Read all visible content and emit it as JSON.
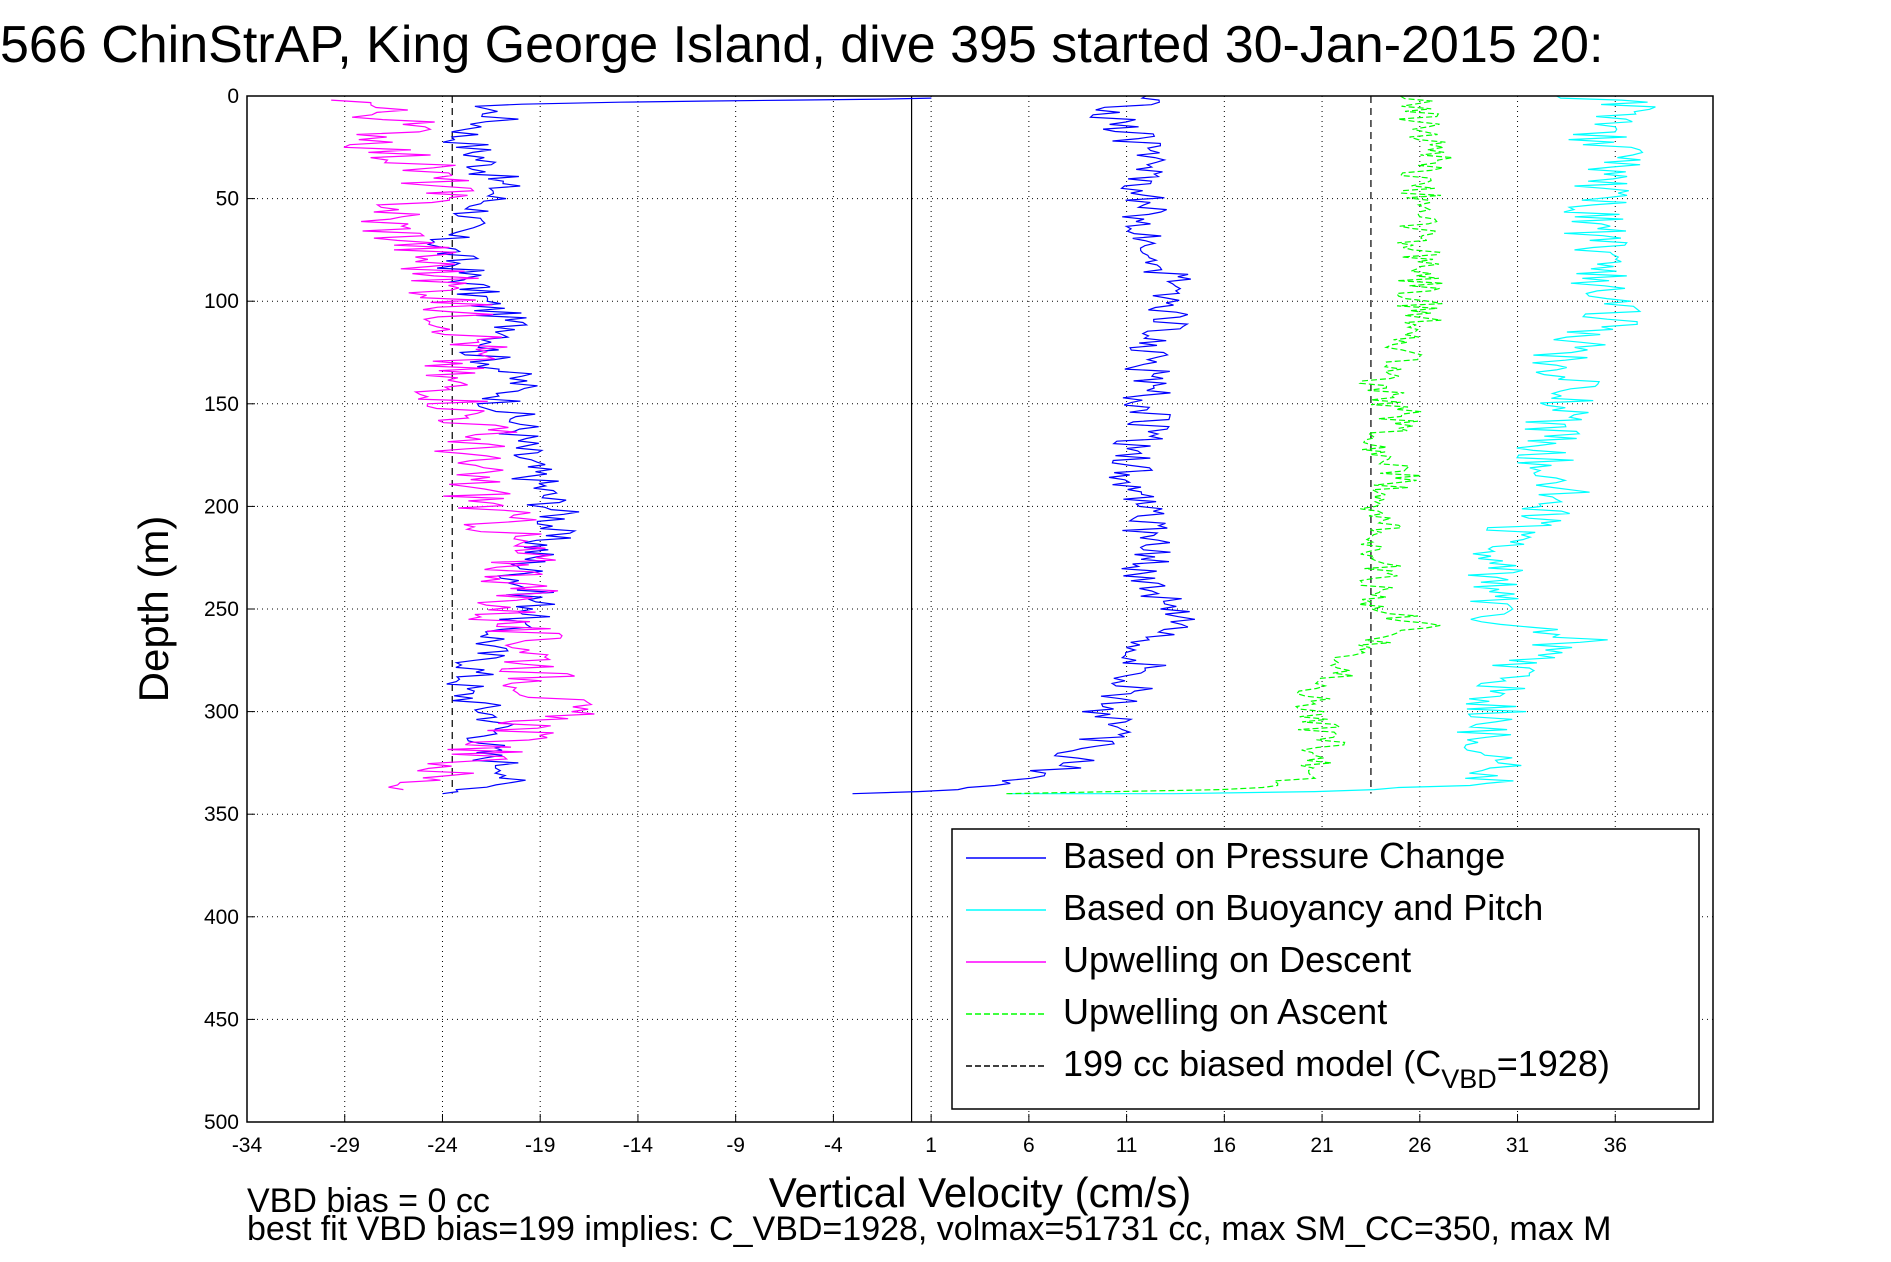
{
  "chart_data": {
    "type": "line",
    "title": "566 ChinStrAP, King George Island, dive 395 started 30-Jan-2015 20:",
    "xlabel": "Vertical Velocity (cm/s)",
    "ylabel": "Depth (m)",
    "xlim": [
      -34,
      41
    ],
    "ylim": [
      0,
      500
    ],
    "y_reversed": true,
    "xticks": [
      "-34",
      "-29",
      "-24",
      "-19",
      "-14",
      "-9",
      "-4",
      "1",
      "6",
      "11",
      "16",
      "21",
      "26",
      "31",
      "36"
    ],
    "yticks": [
      "0",
      "50",
      "100",
      "150",
      "200",
      "250",
      "300",
      "350",
      "400",
      "450",
      "500"
    ],
    "grid": true,
    "legend_position": "bottom-right",
    "zero_line_x": 0,
    "max_depth": 340,
    "series": [
      {
        "name": "Based on Pressure Change",
        "color": "#0000ff",
        "dash": "solid",
        "descent": [
          [
            0,
            1
          ],
          [
            -5,
            2
          ],
          [
            -16,
            3
          ],
          [
            -22,
            5
          ],
          [
            -21,
            10
          ],
          [
            -23,
            20
          ],
          [
            -22,
            30
          ],
          [
            -21,
            45
          ],
          [
            -22,
            55
          ],
          [
            -24,
            70
          ],
          [
            -23,
            85
          ],
          [
            -22,
            100
          ],
          [
            -20,
            115
          ],
          [
            -22,
            125
          ],
          [
            -20,
            140
          ],
          [
            -21,
            150
          ],
          [
            -20,
            160
          ],
          [
            -20,
            175
          ],
          [
            -19,
            190
          ],
          [
            -18,
            205
          ],
          [
            -19,
            220
          ],
          [
            -20,
            235
          ],
          [
            -19,
            250
          ],
          [
            -21,
            260
          ],
          [
            -22,
            275
          ],
          [
            -23,
            290
          ],
          [
            -21,
            305
          ],
          [
            -22,
            320
          ],
          [
            -20,
            330
          ],
          [
            -22,
            338
          ],
          [
            -24,
            340
          ]
        ],
        "ascent": [
          [
            -2,
            340
          ],
          [
            3,
            338
          ],
          [
            5,
            335
          ],
          [
            7,
            330
          ],
          [
            8,
            325
          ],
          [
            9,
            318
          ],
          [
            10,
            310
          ],
          [
            10,
            300
          ],
          [
            11,
            290
          ],
          [
            12,
            280
          ],
          [
            12,
            270
          ],
          [
            13,
            260
          ],
          [
            14,
            255
          ],
          [
            13,
            245
          ],
          [
            12,
            235
          ],
          [
            12,
            220
          ],
          [
            12,
            200
          ],
          [
            11,
            180
          ],
          [
            12,
            160
          ],
          [
            12,
            140
          ],
          [
            12,
            125
          ],
          [
            13,
            110
          ],
          [
            13,
            95
          ],
          [
            13,
            80
          ],
          [
            12,
            60
          ],
          [
            12,
            45
          ],
          [
            12,
            30
          ],
          [
            11,
            15
          ],
          [
            10,
            8
          ],
          [
            12,
            3
          ],
          [
            12,
            0
          ]
        ]
      },
      {
        "name": "Based on Buoyancy and Pitch",
        "color": "#00ffff",
        "dash": "solid",
        "descent": [],
        "ascent": [
          [
            5,
            340
          ],
          [
            15,
            340
          ],
          [
            25,
            338
          ],
          [
            29,
            335
          ],
          [
            30,
            330
          ],
          [
            30,
            320
          ],
          [
            29,
            310
          ],
          [
            30,
            300
          ],
          [
            30,
            290
          ],
          [
            31,
            280
          ],
          [
            32,
            270
          ],
          [
            34,
            265
          ],
          [
            30,
            255
          ],
          [
            30,
            245
          ],
          [
            30,
            230
          ],
          [
            30,
            215
          ],
          [
            33,
            200
          ],
          [
            33,
            185
          ],
          [
            32,
            175
          ],
          [
            33,
            160
          ],
          [
            34,
            145
          ],
          [
            33,
            130
          ],
          [
            34,
            120
          ],
          [
            36,
            110
          ],
          [
            36,
            100
          ],
          [
            35,
            90
          ],
          [
            35,
            75
          ],
          [
            35,
            60
          ],
          [
            35,
            45
          ],
          [
            36,
            30
          ],
          [
            35,
            20
          ],
          [
            36,
            10
          ],
          [
            37,
            3
          ],
          [
            33,
            0
          ]
        ]
      },
      {
        "name": "Upwelling on Descent",
        "color": "#ff00ff",
        "dash": "solid",
        "descent": [
          [
            -28,
            2
          ],
          [
            -27,
            8
          ],
          [
            -26,
            15
          ],
          [
            -27,
            25
          ],
          [
            -25,
            35
          ],
          [
            -24,
            45
          ],
          [
            -27,
            60
          ],
          [
            -25,
            75
          ],
          [
            -24,
            90
          ],
          [
            -23,
            110
          ],
          [
            -22,
            120
          ],
          [
            -24,
            135
          ],
          [
            -23,
            150
          ],
          [
            -22,
            165
          ],
          [
            -23,
            180
          ],
          [
            -22,
            195
          ],
          [
            -21,
            210
          ],
          [
            -20,
            225
          ],
          [
            -20,
            240
          ],
          [
            -21,
            255
          ],
          [
            -19,
            270
          ],
          [
            -19,
            285
          ],
          [
            -18,
            300
          ],
          [
            -21,
            315
          ],
          [
            -24,
            330
          ],
          [
            -26,
            338
          ]
        ],
        "ascent": []
      },
      {
        "name": "Upwelling on Ascent",
        "color": "#00ff00",
        "dash": "dashed",
        "descent": [],
        "ascent": [
          [
            5,
            340
          ],
          [
            17,
            338
          ],
          [
            19,
            335
          ],
          [
            20,
            330
          ],
          [
            21,
            320
          ],
          [
            21,
            310
          ],
          [
            20,
            300
          ],
          [
            21,
            290
          ],
          [
            22,
            280
          ],
          [
            23,
            270
          ],
          [
            26,
            258
          ],
          [
            24,
            250
          ],
          [
            24,
            235
          ],
          [
            24,
            215
          ],
          [
            24,
            200
          ],
          [
            25,
            185
          ],
          [
            24,
            170
          ],
          [
            25,
            155
          ],
          [
            24,
            140
          ],
          [
            25,
            125
          ],
          [
            26,
            115
          ],
          [
            26,
            100
          ],
          [
            26,
            90
          ],
          [
            26,
            75
          ],
          [
            26,
            60
          ],
          [
            26,
            45
          ],
          [
            26,
            35
          ],
          [
            27,
            25
          ],
          [
            26,
            15
          ],
          [
            26,
            5
          ],
          [
            25,
            0
          ]
        ]
      },
      {
        "name": "199 cc biased model (C",
        "name_sub": "VBD",
        "name_tail": "=1928)",
        "color": "#000000",
        "dash": "dashed",
        "vertical_x": [
          -23.5,
          23.5
        ]
      }
    ]
  },
  "footer": {
    "line1": "VBD bias = 0 cc",
    "line2": "best fit VBD bias=199 implies: C_VBD=1928, volmax=51731 cc, max SM_CC=350, max M"
  }
}
